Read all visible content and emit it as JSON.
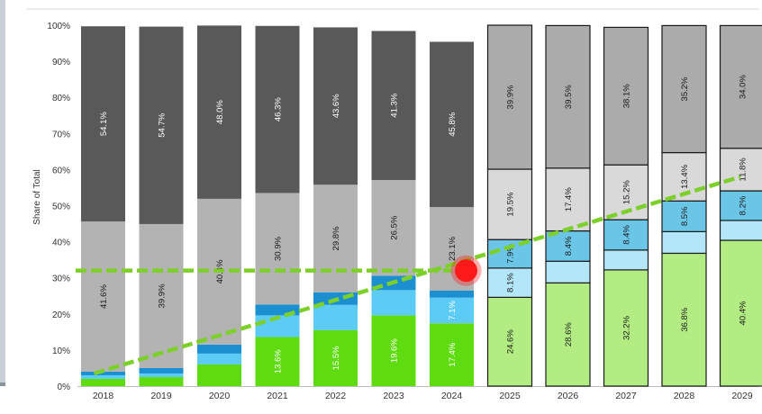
{
  "chart_data": {
    "type": "bar",
    "stacked": true,
    "ylabel": "Share of Total",
    "xlabel": "",
    "title": "",
    "ylim": [
      0,
      100
    ],
    "yticks": [
      "0%",
      "10%",
      "20%",
      "30%",
      "40%",
      "50%",
      "60%",
      "70%",
      "80%",
      "90%",
      "100%"
    ],
    "categories": [
      "2018",
      "2019",
      "2020",
      "2021",
      "2022",
      "2023",
      "2024",
      "2025",
      "2026",
      "2027",
      "2028",
      "2029"
    ],
    "forecast_from": "2025",
    "series": [
      {
        "key": "bottom",
        "values": [
          2.0,
          2.5,
          6.0,
          13.6,
          15.5,
          19.6,
          17.4,
          24.6,
          28.6,
          32.2,
          36.8,
          40.4
        ],
        "labels": [
          "",
          "",
          "",
          "13.6%",
          "15.5%",
          "19.6%",
          "17.4%",
          "24.6%",
          "28.6%",
          "32.2%",
          "36.8%",
          "40.4%"
        ],
        "color": "#5fdc0f",
        "forecast_color": "#b2ec82"
      },
      {
        "key": "second",
        "values": [
          1.0,
          1.0,
          3.0,
          6.0,
          7.0,
          7.0,
          7.1,
          8.1,
          6.0,
          5.5,
          6.0,
          5.5
        ],
        "labels": [
          "",
          "",
          "",
          "",
          "",
          "",
          "7.1%",
          "8.1%",
          "",
          "",
          "",
          ""
        ],
        "color": "#5ccbf5",
        "forecast_color": "#b4e6fa"
      },
      {
        "key": "third",
        "values": [
          1.0,
          1.5,
          2.5,
          3.0,
          3.5,
          4.0,
          2.0,
          7.9,
          8.4,
          8.4,
          8.5,
          8.2
        ],
        "labels": [
          "",
          "",
          "",
          "",
          "",
          "",
          "",
          "7.9%",
          "8.4%",
          "8.4%",
          "8.5%",
          "8.2%"
        ],
        "color": "#1b8fd0",
        "forecast_color": "#6bc5e6"
      },
      {
        "key": "fourth",
        "values": [
          41.6,
          39.9,
          40.4,
          30.9,
          29.8,
          26.5,
          23.1,
          19.5,
          17.4,
          15.2,
          13.4,
          11.8
        ],
        "labels": [
          "41.6%",
          "39.9%",
          "40.4%",
          "30.9%",
          "29.8%",
          "26.5%",
          "23.1%",
          "19.5%",
          "17.4%",
          "15.2%",
          "13.4%",
          "11.8%"
        ],
        "color": "#b3b3b3",
        "forecast_color": "#d9d9d9"
      },
      {
        "key": "top",
        "values": [
          54.1,
          54.7,
          48.0,
          46.3,
          43.6,
          41.3,
          45.8,
          39.9,
          39.5,
          38.1,
          35.2,
          34.0
        ],
        "labels": [
          "54.1%",
          "54.7%",
          "48.0%",
          "46.3%",
          "43.6%",
          "41.3%",
          "45.8%",
          "39.9%",
          "39.5%",
          "38.1%",
          "35.2%",
          "34.0%"
        ],
        "color": "#595959",
        "forecast_color": "#ababab"
      }
    ],
    "annotations": {
      "horizontal_line_value": 32,
      "trend_line": {
        "from": {
          "category": "2018",
          "value": 3.5
        },
        "to": {
          "category": "2029",
          "value": 58
        }
      },
      "marker": {
        "category": "2024",
        "value": 32
      },
      "line_color": "#7dcf2a",
      "marker_color": "#ff1a1a"
    },
    "grid": false
  }
}
